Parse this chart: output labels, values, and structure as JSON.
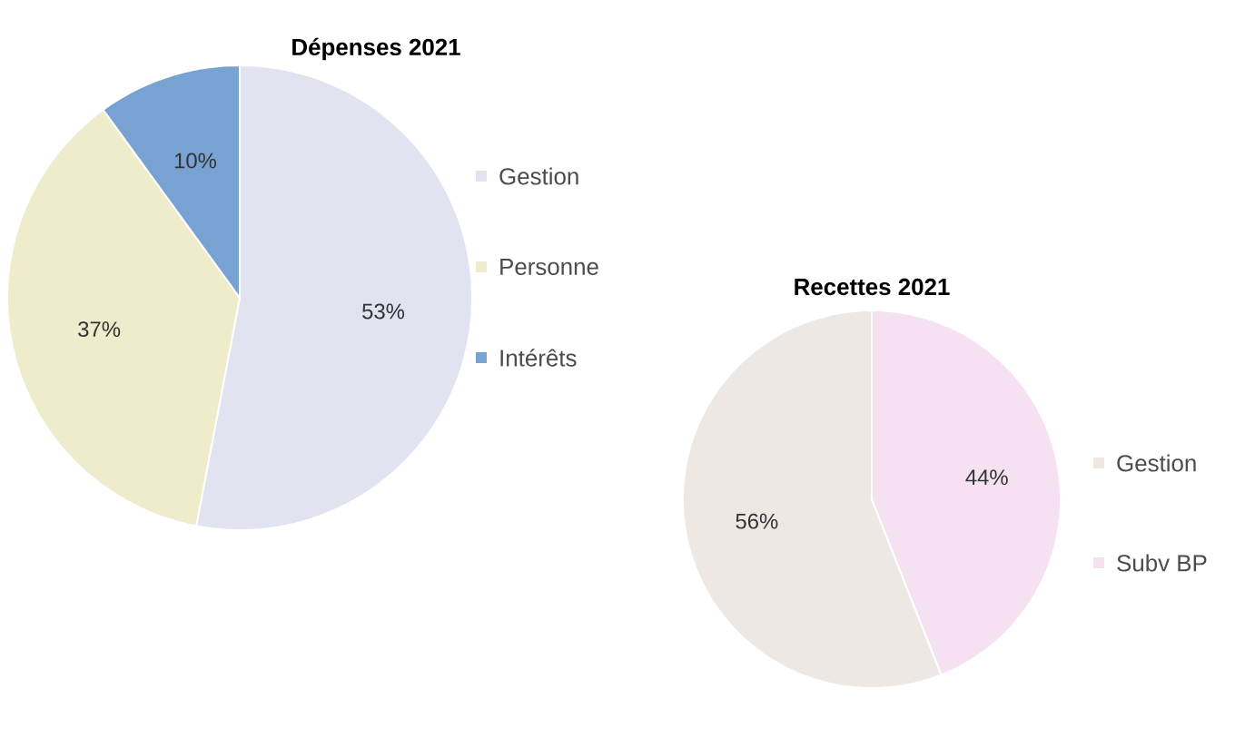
{
  "chart_data": [
    {
      "type": "pie",
      "title": "Dépenses 2021",
      "categories": [
        "Gestion",
        "Personne",
        "Intérêts"
      ],
      "values": [
        53,
        37,
        10
      ],
      "value_labels": [
        "53%",
        "37%",
        "10%"
      ],
      "colors": [
        "#e2e3f0",
        "#efeccb",
        "#78a2d2"
      ],
      "legend": "right"
    },
    {
      "type": "pie",
      "title": "Recettes 2021",
      "categories": [
        "Gestion",
        "Subv BP"
      ],
      "values": [
        56,
        44
      ],
      "value_labels": [
        "56%",
        "44%"
      ],
      "colors": [
        "#eee8e4",
        "#f5e1f2"
      ],
      "legend": "right"
    }
  ]
}
